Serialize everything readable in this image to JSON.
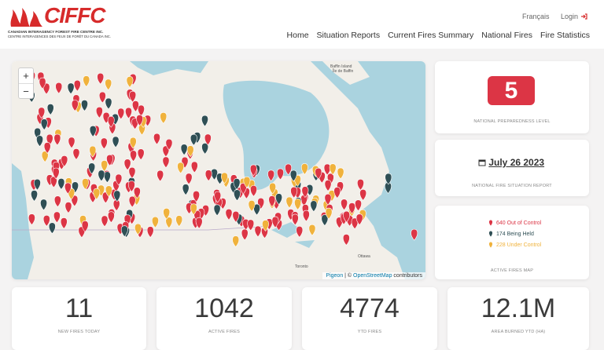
{
  "header": {
    "logo": "CIFFC",
    "org_en": "CANADIAN INTERAGENCY FOREST FIRE CENTRE INC.",
    "org_fr": "CENTRE INTERAGENCES DES FEUX DE FORÊT DU CANADA INC.",
    "language": "Français",
    "login": "Login",
    "nav": [
      "Home",
      "Situation Reports",
      "Current Fires Summary",
      "National Fires",
      "Fire Statistics"
    ]
  },
  "map": {
    "zoom_in": "+",
    "zoom_out": "−",
    "labels": [
      "Baffin Island",
      "Île de Baffin",
      "Ottawa",
      "Toronto"
    ],
    "attribution_link": "Pigeon",
    "attribution_sep": "| ©",
    "attribution_osm": "OpenStreetMap",
    "attribution_end": "contributors"
  },
  "preparedness": {
    "level": "5",
    "label": "NATIONAL PREPAREDNESS LEVEL"
  },
  "report": {
    "date": "July 26 2023",
    "label": "NATIONAL FIRE SITUATION REPORT"
  },
  "legend": {
    "items": [
      "640 Out of Control",
      "174 Being Held",
      "228 Under Control"
    ],
    "label": "ACTIVE FIRES MAP"
  },
  "stats": [
    {
      "value": "11",
      "label": "NEW FIRES TODAY"
    },
    {
      "value": "1042",
      "label": "ACTIVE FIRES"
    },
    {
      "value": "4774",
      "label": "YTD FIRES"
    },
    {
      "value": "12.1M",
      "label": "AREA BURNED YTD (HA)"
    }
  ]
}
